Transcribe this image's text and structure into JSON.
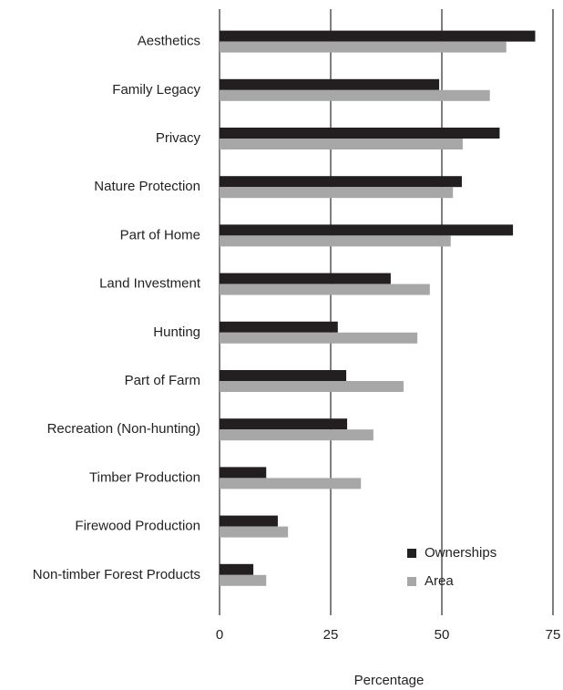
{
  "chart_data": {
    "type": "barh",
    "categories": [
      "Aesthetics",
      "Family Legacy",
      "Privacy",
      "Nature Protection",
      "Part of Home",
      "Land Investment",
      "Hunting",
      "Part of Farm",
      "Recreation (Non-hunting)",
      "Timber Production",
      "Firewood Production",
      "Non-timber Forest Products"
    ],
    "series": [
      {
        "name": "Ownerships",
        "color": "#231f20",
        "values": [
          71,
          49.4,
          63,
          54.5,
          66,
          38.5,
          26.6,
          28.5,
          28.7,
          10.5,
          13.1,
          7.6
        ]
      },
      {
        "name": "Area",
        "color": "#a7a7a7",
        "values": [
          64.5,
          60.8,
          54.7,
          52.5,
          52,
          47.3,
          44.5,
          41.4,
          34.6,
          31.8,
          15.4,
          10.5
        ]
      }
    ],
    "x_label": "Percentage",
    "xlim": [
      0,
      75
    ],
    "xticks": [
      0,
      25,
      50,
      75
    ],
    "grid": true,
    "legend": "lower right"
  }
}
